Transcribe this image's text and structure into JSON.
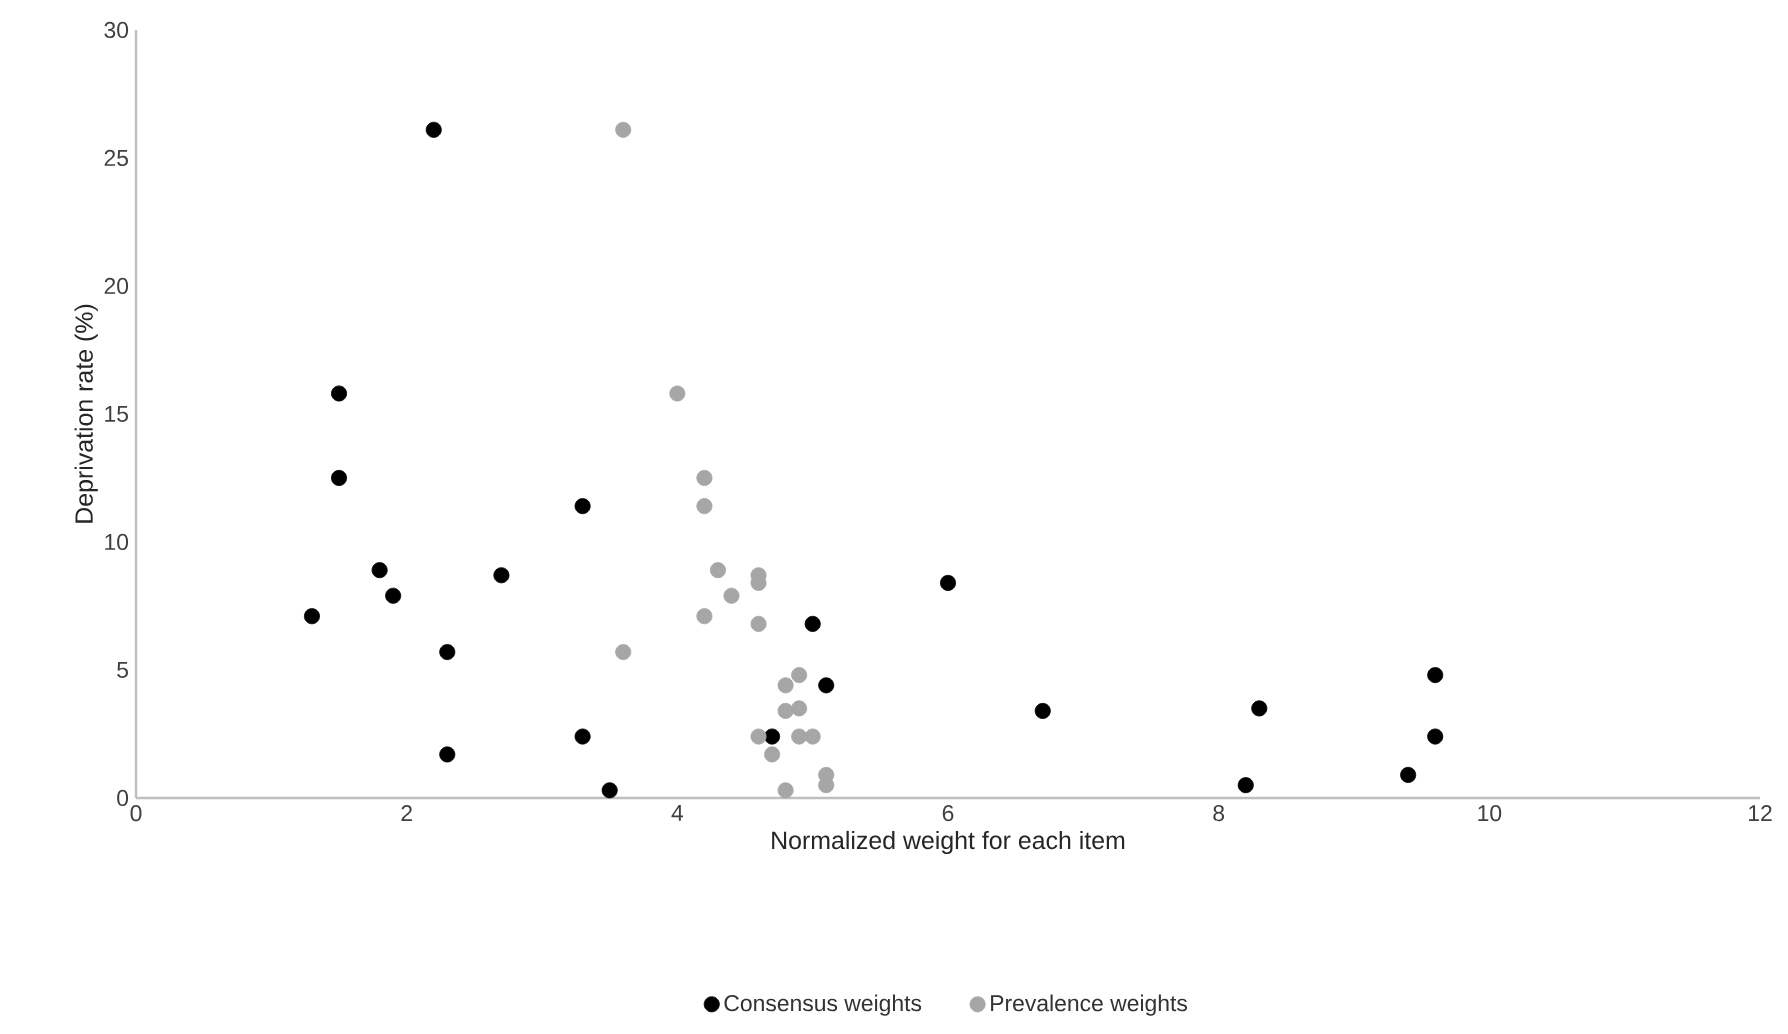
{
  "chart_data": {
    "type": "scatter",
    "xlabel": "Normalized weight for each item",
    "ylabel": "Deprivation rate (%)",
    "xlim": [
      0,
      12
    ],
    "xticks": [
      0,
      2,
      4,
      6,
      8,
      10,
      12
    ],
    "ylim": [
      0,
      30
    ],
    "yticks": [
      0,
      5,
      10,
      15,
      20,
      25,
      30
    ],
    "grid": false,
    "legend": "bottom",
    "marker": "circle",
    "series": [
      {
        "name": "Consensus weights",
        "color": "#000000",
        "x": [
          1.3,
          1.5,
          1.5,
          1.8,
          1.9,
          2.2,
          2.3,
          2.3,
          2.7,
          3.3,
          3.3,
          3.5,
          4.7,
          5.0,
          5.1,
          6.0,
          6.7,
          8.2,
          8.3,
          9.4,
          9.6,
          9.6
        ],
        "values": [
          7.1,
          15.8,
          12.5,
          8.9,
          7.9,
          26.1,
          5.7,
          1.7,
          8.7,
          11.4,
          2.4,
          0.3,
          2.4,
          6.8,
          4.4,
          8.4,
          3.4,
          0.5,
          3.5,
          0.9,
          4.8,
          2.4
        ]
      },
      {
        "name": "Prevalence weights",
        "color": "#a6a6a6",
        "x": [
          3.6,
          4.0,
          4.2,
          4.2,
          4.3,
          4.4,
          4.2,
          4.6,
          4.6,
          4.6,
          3.6,
          4.9,
          4.8,
          4.9,
          4.8,
          4.6,
          4.9,
          5.0,
          4.7,
          5.1,
          5.1,
          4.8
        ],
        "values": [
          26.1,
          15.8,
          12.5,
          11.4,
          8.9,
          7.9,
          7.1,
          8.7,
          8.4,
          6.8,
          5.7,
          4.8,
          4.4,
          3.5,
          3.4,
          2.4,
          2.4,
          2.4,
          1.7,
          0.9,
          0.5,
          0.3
        ]
      }
    ]
  }
}
